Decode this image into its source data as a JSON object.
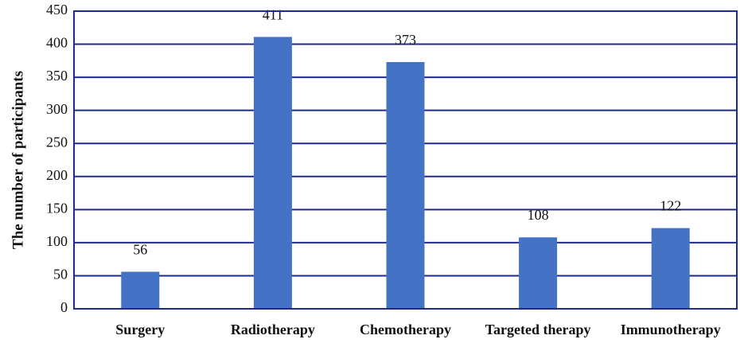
{
  "chart_data": {
    "type": "bar",
    "title": "",
    "xlabel": "",
    "ylabel": "The number of participants",
    "categories": [
      "Surgery",
      "Radiotherapy",
      "Chemotherapy",
      "Targeted therapy",
      "Immunotherapy"
    ],
    "values": [
      56,
      411,
      373,
      108,
      122
    ],
    "ylim": [
      0,
      450
    ],
    "yticks": [
      0,
      50,
      100,
      150,
      200,
      250,
      300,
      350,
      400,
      450
    ],
    "grid": true,
    "legend": "none",
    "colors": {
      "bar": "#4472c4",
      "grid": "#1f2a8c"
    }
  }
}
